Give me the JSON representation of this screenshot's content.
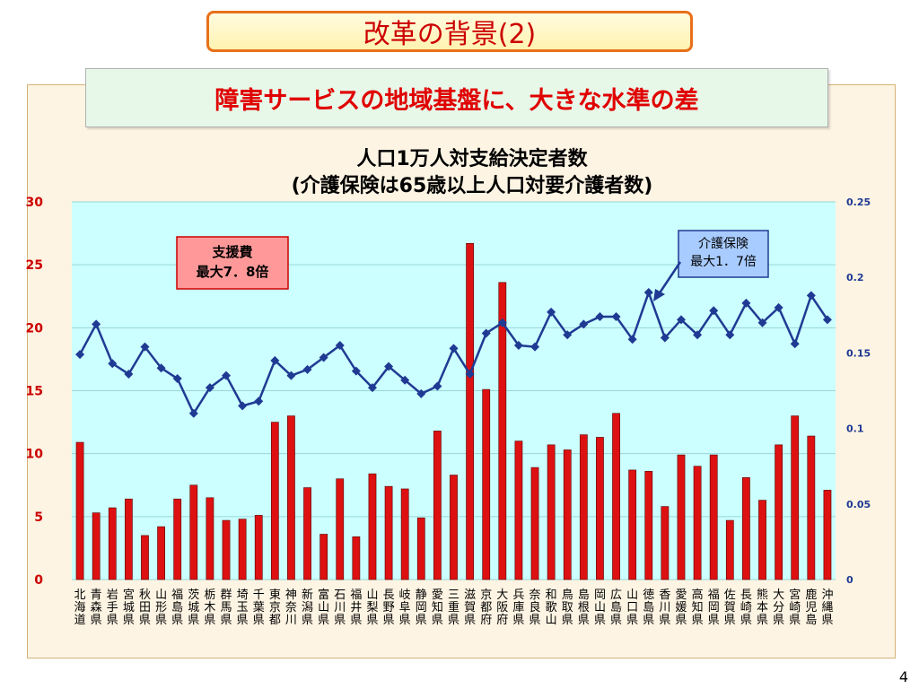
{
  "slide": {
    "title": "改革の背景(2)",
    "subtitle": "障害サービスの地域基盤に、大きな水準の差",
    "page_number": "4"
  },
  "chart_data": {
    "type": "bar",
    "title": "人口1万人対支給決定者数",
    "subtitle": "(介護保険は65歳以上人口対要介護者数)",
    "categories": [
      [
        "北",
        "海",
        "道"
      ],
      [
        "青",
        "森",
        "県"
      ],
      [
        "岩",
        "手",
        "県"
      ],
      [
        "宮",
        "城",
        "県"
      ],
      [
        "秋",
        "田",
        "県"
      ],
      [
        "山",
        "形",
        "県"
      ],
      [
        "福",
        "島",
        "県"
      ],
      [
        "茨",
        "城",
        "県"
      ],
      [
        "栃",
        "木",
        "県"
      ],
      [
        "群",
        "馬",
        "県"
      ],
      [
        "埼",
        "玉",
        "県"
      ],
      [
        "千",
        "葉",
        "県"
      ],
      [
        "東",
        "京",
        "都"
      ],
      [
        "神",
        "奈",
        "川"
      ],
      [
        "新",
        "潟",
        "県"
      ],
      [
        "富",
        "山",
        "県"
      ],
      [
        "石",
        "川",
        "県"
      ],
      [
        "福",
        "井",
        "県"
      ],
      [
        "山",
        "梨",
        "県"
      ],
      [
        "長",
        "野",
        "県"
      ],
      [
        "岐",
        "阜",
        "県"
      ],
      [
        "静",
        "岡",
        "県"
      ],
      [
        "愛",
        "知",
        "県"
      ],
      [
        "三",
        "重",
        "県"
      ],
      [
        "滋",
        "賀",
        "県"
      ],
      [
        "京",
        "都",
        "府"
      ],
      [
        "大",
        "阪",
        "府"
      ],
      [
        "兵",
        "庫",
        "県"
      ],
      [
        "奈",
        "良",
        "県"
      ],
      [
        "和",
        "歌",
        "山"
      ],
      [
        "鳥",
        "取",
        "県"
      ],
      [
        "島",
        "根",
        "県"
      ],
      [
        "岡",
        "山",
        "県"
      ],
      [
        "広",
        "島",
        "県"
      ],
      [
        "山",
        "口",
        "県"
      ],
      [
        "徳",
        "島",
        "県"
      ],
      [
        "香",
        "川",
        "県"
      ],
      [
        "愛",
        "媛",
        "県"
      ],
      [
        "高",
        "知",
        "県"
      ],
      [
        "福",
        "岡",
        "県"
      ],
      [
        "佐",
        "賀",
        "県"
      ],
      [
        "長",
        "崎",
        "県"
      ],
      [
        "熊",
        "本",
        "県"
      ],
      [
        "大",
        "分",
        "県"
      ],
      [
        "宮",
        "崎",
        "県"
      ],
      [
        "鹿",
        "児",
        "島"
      ],
      [
        "沖",
        "縄",
        "県"
      ]
    ],
    "left_axis": {
      "ylim": [
        0,
        30
      ],
      "ticks": [
        "0",
        "5",
        "10",
        "15",
        "20",
        "25",
        "30"
      ]
    },
    "right_axis": {
      "ylim": [
        0,
        0.25
      ],
      "ticks": [
        "0",
        "0.05",
        "0.1",
        "0.15",
        "0.2",
        "0.25"
      ]
    },
    "series": [
      {
        "kind": "bar",
        "axis": "left",
        "color": "#dd1111",
        "values": [
          10.9,
          5.3,
          5.7,
          6.4,
          3.5,
          4.2,
          6.4,
          7.5,
          6.5,
          4.7,
          4.8,
          5.1,
          12.5,
          13.0,
          7.3,
          3.6,
          8.0,
          3.4,
          8.4,
          7.4,
          7.2,
          4.9,
          11.8,
          8.3,
          26.7,
          15.1,
          23.6,
          11.0,
          8.9,
          10.7,
          10.3,
          11.5,
          11.3,
          13.2,
          8.7,
          8.6,
          5.8,
          9.9,
          9.0,
          9.9,
          4.7,
          8.1,
          6.3,
          10.7,
          13.0,
          11.4,
          7.1
        ]
      },
      {
        "kind": "line",
        "axis": "right",
        "color": "#1f3a93",
        "values": [
          0.149,
          0.169,
          0.143,
          0.136,
          0.154,
          0.14,
          0.133,
          0.11,
          0.127,
          0.135,
          0.115,
          0.118,
          0.145,
          0.135,
          0.139,
          0.147,
          0.155,
          0.138,
          0.127,
          0.141,
          0.132,
          0.123,
          0.128,
          0.153,
          0.136,
          0.163,
          0.17,
          0.155,
          0.154,
          0.177,
          0.162,
          0.169,
          0.174,
          0.174,
          0.159,
          0.19,
          0.16,
          0.172,
          0.162,
          0.178,
          0.162,
          0.183,
          0.17,
          0.18,
          0.156,
          0.188,
          0.172
        ]
      }
    ],
    "annotations": [
      {
        "text_lines": [
          "支援費",
          "最大7．8倍"
        ],
        "bg": "#ff9999",
        "border": "#cc0000"
      },
      {
        "text_lines": [
          "介護保険",
          "最大1．7倍"
        ],
        "bg": "#a8ccff",
        "border": "#1f3a93"
      }
    ]
  }
}
